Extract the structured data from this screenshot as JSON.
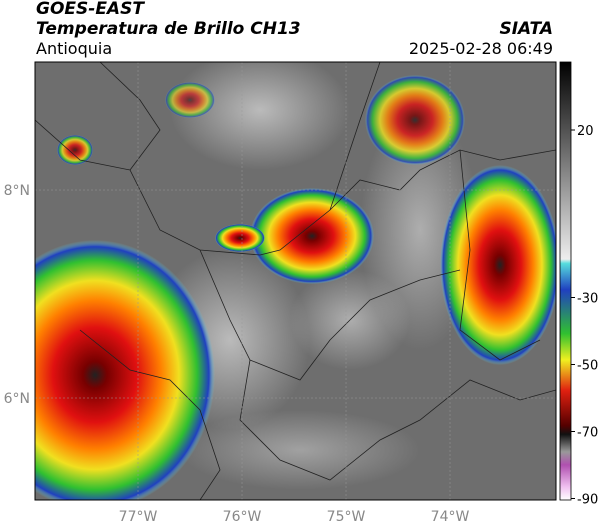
{
  "header": {
    "satellite": "GOES-EAST",
    "product": "Temperatura de Brillo CH13",
    "region": "Antioquia",
    "source": "SIATA",
    "datetime": "2025-02-28 06:49"
  },
  "map": {
    "lon_labels": [
      "77°W",
      "76°W",
      "75°W",
      "74°W"
    ],
    "lat_labels": [
      "8°N",
      "6°N"
    ]
  },
  "colorbar": {
    "ticks": [
      20,
      -30,
      -50,
      -70,
      -90
    ]
  }
}
